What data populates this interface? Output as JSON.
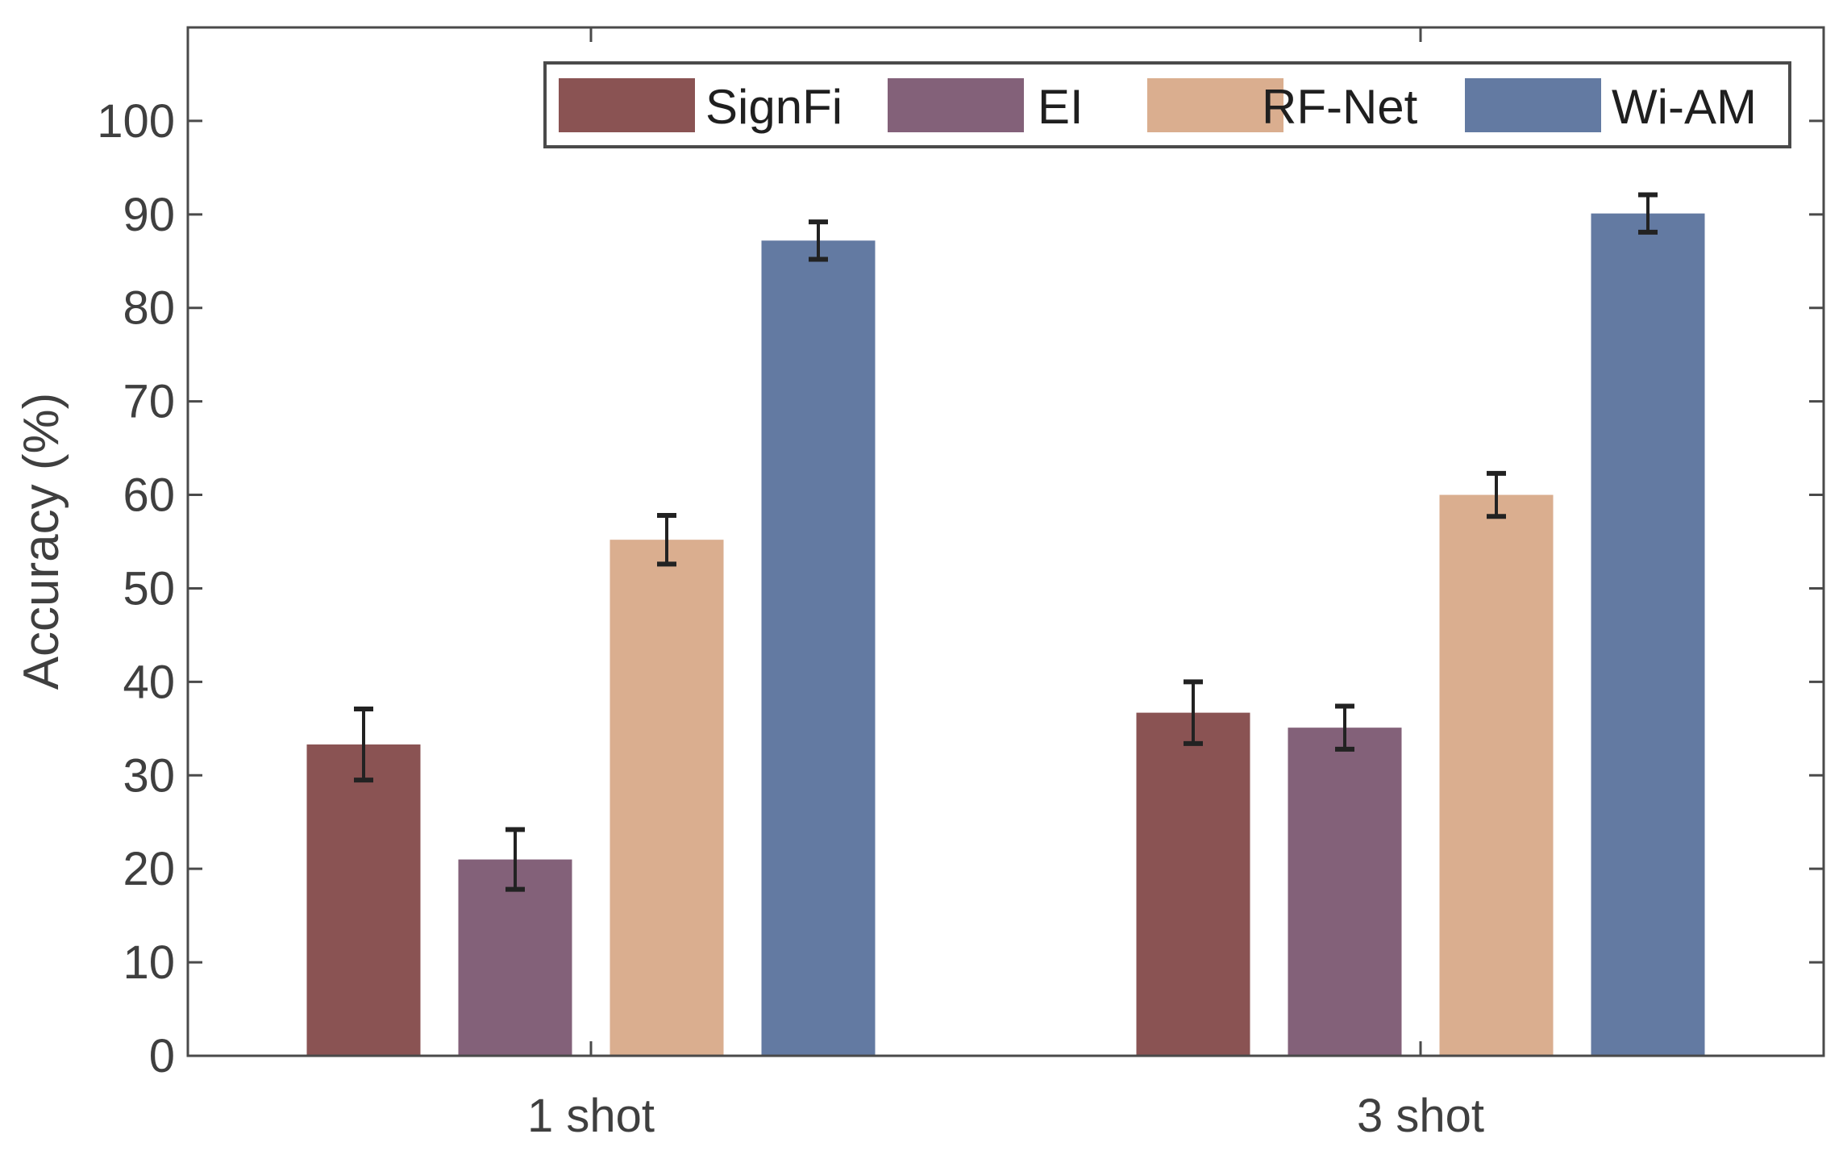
{
  "chart_data": {
    "type": "bar",
    "title": "",
    "xlabel": "",
    "ylabel": "Accuracy (%)",
    "ylim": [
      0,
      110
    ],
    "yticks": [
      0,
      10,
      20,
      30,
      40,
      50,
      60,
      70,
      80,
      90,
      100
    ],
    "categories": [
      "1 shot",
      "3 shot"
    ],
    "grid": false,
    "legend_position": "top-right",
    "series": [
      {
        "name": "SignFi",
        "color": "#8a5353",
        "values": [
          33.3,
          36.7
        ],
        "errors": [
          3.8,
          3.3
        ]
      },
      {
        "name": "EI",
        "color": "#836179",
        "values": [
          21.0,
          35.1
        ],
        "errors": [
          3.2,
          2.3
        ]
      },
      {
        "name": "RF-Net",
        "color": "#daae8f",
        "values": [
          55.2,
          60.0
        ],
        "errors": [
          2.6,
          2.3
        ]
      },
      {
        "name": "Wi-AM",
        "color": "#637aa2",
        "values": [
          87.2,
          90.1
        ],
        "errors": [
          2.0,
          2.0
        ]
      }
    ]
  }
}
